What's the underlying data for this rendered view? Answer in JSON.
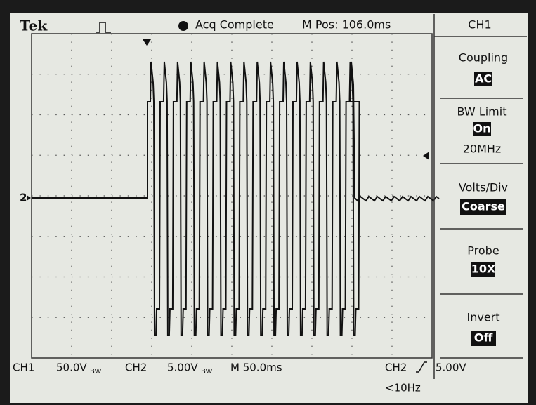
{
  "header": {
    "brand": "Tek",
    "status": "Acq Complete",
    "position": "M Pos: 106.0ms"
  },
  "channel_marker": "2",
  "menu": {
    "title": "CH1",
    "items": [
      {
        "label": "Coupling",
        "value": "AC"
      },
      {
        "label": "BW Limit",
        "value": "On",
        "extra": "20MHz"
      },
      {
        "label": "Volts/Div",
        "value": "Coarse"
      },
      {
        "label": "Probe",
        "value": "10X"
      },
      {
        "label": "Invert",
        "value": "Off"
      }
    ]
  },
  "footer": {
    "ch1": "CH1",
    "ch1_scale": "50.0V",
    "ch1_bw": "BW",
    "ch2": "CH2",
    "ch2_scale": "5.00V",
    "ch2_bw": "BW",
    "timebase": "M 50.0ms",
    "trigger_source": "CH2",
    "trigger_level": "5.00V",
    "trigger_freq": "<10Hz"
  }
}
